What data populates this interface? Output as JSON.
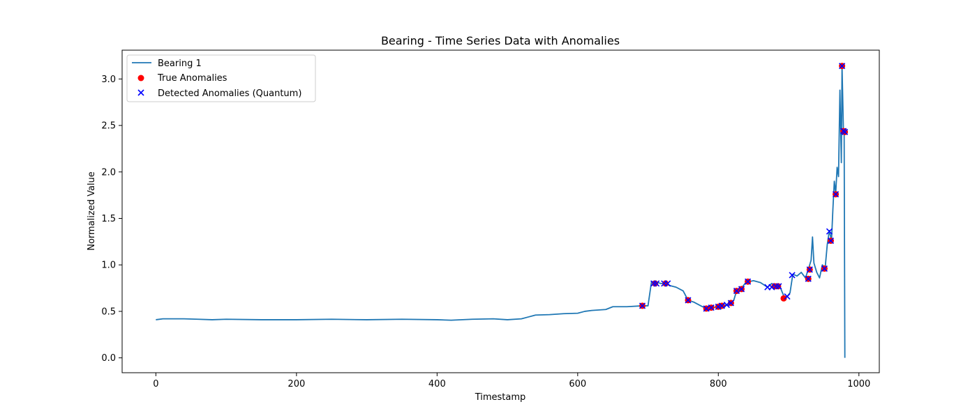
{
  "chart_data": {
    "type": "line",
    "title": "Bearing - Time Series Data with Anomalies",
    "xlabel": "Timestamp",
    "ylabel": "Normalized Value",
    "xlim": [
      -48,
      1029
    ],
    "ylim": [
      -0.16,
      3.31
    ],
    "x_ticks": [
      0,
      200,
      400,
      600,
      800,
      1000
    ],
    "y_ticks": [
      0.0,
      0.5,
      1.0,
      1.5,
      2.0,
      2.5,
      3.0
    ],
    "x_tick_labels": [
      "0",
      "200",
      "400",
      "600",
      "800",
      "1000"
    ],
    "y_tick_labels": [
      "0.0",
      "0.5",
      "1.0",
      "1.5",
      "2.0",
      "2.5",
      "3.0"
    ],
    "grid": false,
    "legend_position": "top-left",
    "legend": [
      "Bearing 1",
      "True Anomalies",
      "Detected Anomalies (Quantum)"
    ],
    "colors": {
      "line": "#1f77b4",
      "true": "#ff0000",
      "detected": "#0000ff"
    },
    "series": [
      {
        "name": "Bearing 1",
        "type": "line",
        "points": [
          [
            0,
            0.41
          ],
          [
            10,
            0.42
          ],
          [
            20,
            0.42
          ],
          [
            30,
            0.42
          ],
          [
            40,
            0.42
          ],
          [
            60,
            0.415
          ],
          [
            80,
            0.41
          ],
          [
            100,
            0.415
          ],
          [
            150,
            0.41
          ],
          [
            200,
            0.41
          ],
          [
            250,
            0.415
          ],
          [
            300,
            0.41
          ],
          [
            350,
            0.415
          ],
          [
            400,
            0.41
          ],
          [
            420,
            0.405
          ],
          [
            450,
            0.415
          ],
          [
            480,
            0.42
          ],
          [
            500,
            0.41
          ],
          [
            520,
            0.42
          ],
          [
            530,
            0.44
          ],
          [
            540,
            0.46
          ],
          [
            560,
            0.465
          ],
          [
            580,
            0.475
          ],
          [
            600,
            0.48
          ],
          [
            610,
            0.5
          ],
          [
            620,
            0.51
          ],
          [
            640,
            0.52
          ],
          [
            650,
            0.55
          ],
          [
            670,
            0.55
          ],
          [
            692,
            0.56
          ],
          [
            700,
            0.56
          ],
          [
            705,
            0.82
          ],
          [
            710,
            0.82
          ],
          [
            718,
            0.8
          ],
          [
            726,
            0.8
          ],
          [
            730,
            0.78
          ],
          [
            740,
            0.76
          ],
          [
            750,
            0.72
          ],
          [
            757,
            0.62
          ],
          [
            765,
            0.6
          ],
          [
            775,
            0.56
          ],
          [
            783,
            0.53
          ],
          [
            790,
            0.54
          ],
          [
            800,
            0.55
          ],
          [
            805,
            0.56
          ],
          [
            812,
            0.57
          ],
          [
            818,
            0.59
          ],
          [
            822,
            0.62
          ],
          [
            826,
            0.72
          ],
          [
            832,
            0.74
          ],
          [
            838,
            0.8
          ],
          [
            844,
            0.82
          ],
          [
            850,
            0.83
          ],
          [
            860,
            0.81
          ],
          [
            870,
            0.76
          ],
          [
            876,
            0.8
          ],
          [
            882,
            0.77
          ],
          [
            888,
            0.76
          ],
          [
            894,
            0.65
          ],
          [
            898,
            0.66
          ],
          [
            902,
            0.7
          ],
          [
            906,
            0.9
          ],
          [
            912,
            0.88
          ],
          [
            918,
            0.92
          ],
          [
            924,
            0.86
          ],
          [
            928,
            0.95
          ],
          [
            932,
            1.05
          ],
          [
            934,
            1.3
          ],
          [
            936,
            1.02
          ],
          [
            940,
            0.92
          ],
          [
            944,
            0.86
          ],
          [
            948,
            1.0
          ],
          [
            952,
            0.97
          ],
          [
            955,
            1.22
          ],
          [
            958,
            1.37
          ],
          [
            961,
            1.26
          ],
          [
            963,
            1.6
          ],
          [
            965,
            1.9
          ],
          [
            967,
            1.77
          ],
          [
            969,
            2.05
          ],
          [
            971,
            1.95
          ],
          [
            973,
            2.88
          ],
          [
            975,
            2.1
          ],
          [
            976,
            3.14
          ],
          [
            978,
            2.44
          ],
          [
            979,
            2.43
          ],
          [
            980,
            0.0
          ]
        ]
      },
      {
        "name": "True Anomalies",
        "type": "scatter",
        "points": [
          [
            692,
            0.56
          ],
          [
            710,
            0.8
          ],
          [
            725,
            0.8
          ],
          [
            757,
            0.62
          ],
          [
            783,
            0.53
          ],
          [
            790,
            0.54
          ],
          [
            800,
            0.55
          ],
          [
            805,
            0.56
          ],
          [
            818,
            0.59
          ],
          [
            826,
            0.72
          ],
          [
            833,
            0.74
          ],
          [
            842,
            0.82
          ],
          [
            880,
            0.77
          ],
          [
            885,
            0.77
          ],
          [
            893,
            0.64
          ],
          [
            928,
            0.85
          ],
          [
            930,
            0.95
          ],
          [
            951,
            0.96
          ],
          [
            960,
            1.26
          ],
          [
            967,
            1.76
          ],
          [
            976,
            3.14
          ],
          [
            978,
            2.44
          ],
          [
            980,
            2.43
          ]
        ]
      },
      {
        "name": "Detected Anomalies (Quantum)",
        "type": "scatter",
        "points": [
          [
            692,
            0.56
          ],
          [
            708,
            0.8
          ],
          [
            712,
            0.8
          ],
          [
            723,
            0.8
          ],
          [
            728,
            0.8
          ],
          [
            757,
            0.62
          ],
          [
            783,
            0.53
          ],
          [
            790,
            0.54
          ],
          [
            800,
            0.55
          ],
          [
            805,
            0.56
          ],
          [
            812,
            0.57
          ],
          [
            818,
            0.59
          ],
          [
            826,
            0.72
          ],
          [
            833,
            0.74
          ],
          [
            842,
            0.82
          ],
          [
            870,
            0.76
          ],
          [
            876,
            0.76
          ],
          [
            882,
            0.77
          ],
          [
            886,
            0.77
          ],
          [
            898,
            0.66
          ],
          [
            905,
            0.89
          ],
          [
            928,
            0.85
          ],
          [
            930,
            0.95
          ],
          [
            951,
            0.96
          ],
          [
            958,
            1.36
          ],
          [
            960,
            1.26
          ],
          [
            967,
            1.76
          ],
          [
            976,
            3.14
          ],
          [
            978,
            2.44
          ],
          [
            980,
            2.43
          ]
        ]
      }
    ]
  }
}
